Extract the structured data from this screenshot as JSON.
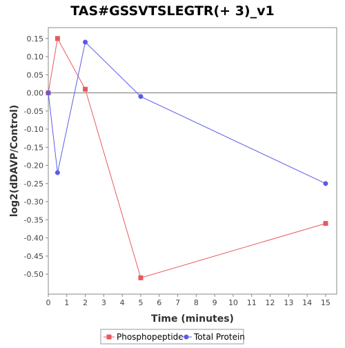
{
  "chart_data": {
    "type": "line",
    "title": "TAS#GSSVTSLEGTR(+ 3)_v1",
    "xlabel": "Time (minutes)",
    "ylabel": "log2(dDAVP/Control)",
    "xlim": [
      0,
      15.6
    ],
    "ylim": [
      -0.555,
      0.18
    ],
    "x_ticks": [
      0,
      1,
      2,
      3,
      4,
      5,
      6,
      7,
      8,
      9,
      10,
      11,
      12,
      13,
      14,
      15
    ],
    "y_ticks": [
      0.15,
      0.1,
      0.05,
      0.0,
      -0.05,
      -0.1,
      -0.15,
      -0.2,
      -0.25,
      -0.3,
      -0.35,
      -0.4,
      -0.45,
      -0.5
    ],
    "y_tick_labels": [
      "0.15",
      "0.10",
      "0.05",
      "0.00",
      "-0.05",
      "-0.10",
      "-0.15",
      "-0.20",
      "-0.25",
      "-0.30",
      "-0.35",
      "-0.40",
      "-0.45",
      "-0.50"
    ],
    "grid": false,
    "zero_line": true,
    "legend_position": "bottom",
    "series": [
      {
        "name": "Phosphopeptide",
        "color": "#e8595c",
        "marker": "square",
        "x": [
          0,
          0.5,
          2,
          5,
          15
        ],
        "y": [
          0.0,
          0.15,
          0.01,
          -0.51,
          -0.36
        ]
      },
      {
        "name": "Total Protein",
        "color": "#5b5be6",
        "marker": "circle",
        "x": [
          0,
          0.5,
          2,
          5,
          15
        ],
        "y": [
          0.0,
          -0.22,
          0.14,
          -0.01,
          -0.25
        ]
      }
    ]
  }
}
